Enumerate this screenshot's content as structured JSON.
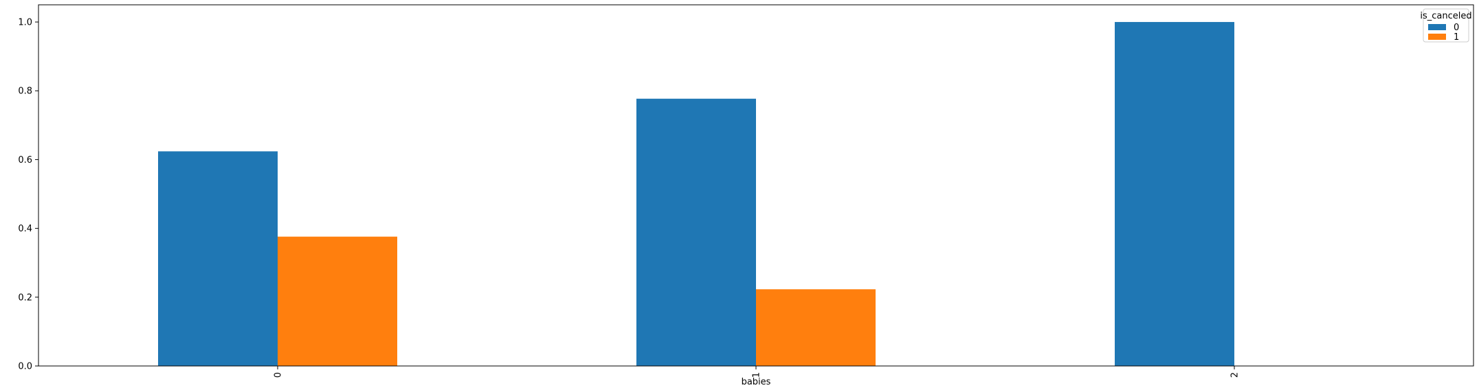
{
  "chart_data": {
    "type": "bar",
    "categories": [
      "0",
      "1",
      "2"
    ],
    "series": [
      {
        "name": "0",
        "values": [
          0.624,
          0.777,
          1.0
        ],
        "color": "#1f77b4"
      },
      {
        "name": "1",
        "values": [
          0.376,
          0.223,
          0.0
        ],
        "color": "#ff7f0e"
      }
    ],
    "xlabel": "babies",
    "ylabel": "",
    "ylim": [
      0,
      1.05
    ],
    "yticks": [
      "0.0",
      "0.2",
      "0.4",
      "0.6",
      "0.8",
      "1.0"
    ],
    "ytick_values": [
      0,
      0.2,
      0.4,
      0.6,
      0.8,
      1.0
    ],
    "legend": {
      "title": "is_canceled",
      "placement": "top-right"
    },
    "grid": false,
    "x_tick_rotation": "vertical"
  }
}
